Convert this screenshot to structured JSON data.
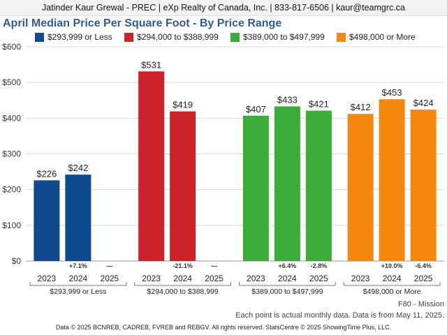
{
  "header": {
    "text": "Jatinder Kaur Grewal - PREC | eXp Realty of Canada, Inc. | 833-817-6506 | kaur@teamgrc.ca"
  },
  "colors": {
    "series": [
      "#0f4a8f",
      "#cc2229",
      "#3bab3a",
      "#f5870f"
    ],
    "grid": "#d9d9d9",
    "title": "#2f5b9a"
  },
  "chart_data": {
    "type": "bar",
    "title": "April Median Price Per Square Foot - By Price Range",
    "ylim": [
      0,
      600
    ],
    "yticks": [
      "$0",
      "$100",
      "$200",
      "$300",
      "$400",
      "$500",
      "$600"
    ],
    "grid": true,
    "legend_position": "top",
    "categories": [
      "2023",
      "2024",
      "2025"
    ],
    "series": [
      {
        "name": "$293,999 or Less",
        "values": [
          226,
          242,
          null
        ],
        "value_labels": [
          "$226",
          "$242",
          ""
        ],
        "changes": [
          "",
          "+7.1%",
          "—"
        ]
      },
      {
        "name": "$294,000 to $388,999",
        "values": [
          531,
          419,
          null
        ],
        "value_labels": [
          "$531",
          "$419",
          ""
        ],
        "changes": [
          "",
          "-21.1%",
          "—"
        ]
      },
      {
        "name": "$389,000 to $497,999",
        "values": [
          407,
          433,
          421
        ],
        "value_labels": [
          "$407",
          "$433",
          "$421"
        ],
        "changes": [
          "",
          "+6.4%",
          "-2.8%"
        ]
      },
      {
        "name": "$498,000 or More",
        "values": [
          412,
          453,
          424
        ],
        "value_labels": [
          "$412",
          "$453",
          "$424"
        ],
        "changes": [
          "",
          "+10.0%",
          "-6.4%"
        ]
      }
    ]
  },
  "footer": {
    "region": "F80 - Mission",
    "note": "Each point is actual monthly data. Data is from May 11, 2025.",
    "copyright": "Data © 2025 BCNREB, CADREB, FVREB and REBGV. All rights reserved. StatsCentre © 2025 ShowingTime Plus, LLC."
  }
}
